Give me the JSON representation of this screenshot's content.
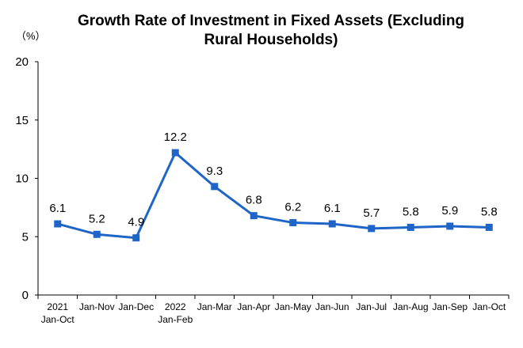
{
  "chart_data": {
    "type": "line",
    "title": "Growth Rate of Investment in Fixed Assets (Excluding Rural Households)",
    "title_lines": [
      "Growth Rate of Investment in Fixed Assets (Excluding",
      "Rural Households)"
    ],
    "unit_label": "（%）",
    "categories": [
      [
        "2021",
        "Jan-Oct"
      ],
      [
        "Jan-Nov"
      ],
      [
        "Jan-Dec"
      ],
      [
        "2022",
        "Jan-Feb"
      ],
      [
        "Jan-Mar"
      ],
      [
        "Jan-Apr"
      ],
      [
        "Jan-May"
      ],
      [
        "Jan-Jun"
      ],
      [
        "Jan-Jul"
      ],
      [
        "Jan-Aug"
      ],
      [
        "Jan-Sep"
      ],
      [
        "Jan-Oct"
      ]
    ],
    "values": [
      6.1,
      5.2,
      4.9,
      12.2,
      9.3,
      6.8,
      6.2,
      6.1,
      5.7,
      5.8,
      5.9,
      5.8
    ],
    "ylim": [
      0,
      20
    ],
    "yticks": [
      0,
      5,
      10,
      15,
      20
    ],
    "grid": false,
    "legend": "none",
    "line_color": "#1f65c8",
    "marker": "square"
  }
}
